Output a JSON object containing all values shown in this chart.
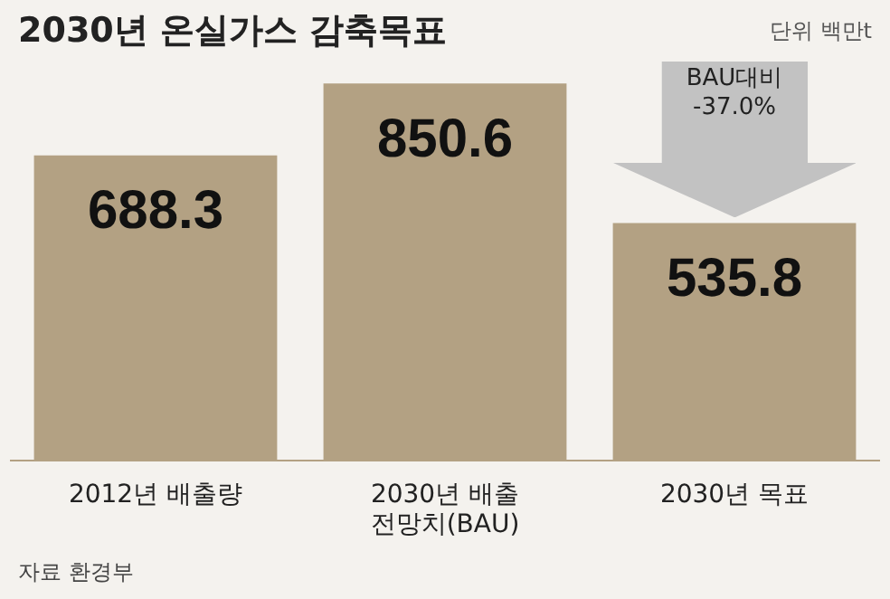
{
  "chart_data": {
    "type": "bar",
    "title": "2030년 온실가스 감축목표",
    "subtitle": "단위 백만t",
    "categories": [
      "2012년 배출량",
      "2030년 배출 전망치(BAU)",
      "2030년 목표"
    ],
    "values": [
      688.3,
      850.6,
      535.8
    ],
    "color": "#b3a183",
    "data_labels": true,
    "grid": false,
    "legend": false,
    "annotations": [
      "BAU대비 -37.0%",
      "자료 환경부"
    ]
  }
}
